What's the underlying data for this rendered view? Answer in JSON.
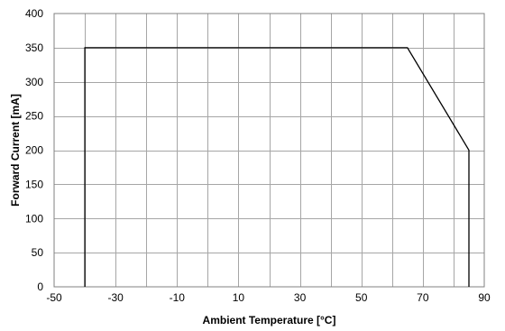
{
  "chart_data": {
    "type": "line",
    "title": "",
    "xlabel": "Ambient Temperature [°C]",
    "ylabel": "Forward Current [mA]",
    "xlim": [
      -50,
      90
    ],
    "ylim": [
      0,
      400
    ],
    "x_ticks": [
      -50,
      -30,
      -10,
      10,
      30,
      50,
      70,
      90
    ],
    "x_grid": [
      -50,
      -40,
      -30,
      -20,
      -10,
      0,
      10,
      20,
      30,
      40,
      50,
      60,
      70,
      80,
      90
    ],
    "y_ticks": [
      0,
      50,
      100,
      150,
      200,
      250,
      300,
      350,
      400
    ],
    "grid": true,
    "legend": "none",
    "series": [
      {
        "color": "#000000",
        "x": [
          -40,
          -40,
          65,
          85,
          85
        ],
        "y": [
          0,
          350,
          350,
          200,
          0
        ]
      }
    ]
  }
}
